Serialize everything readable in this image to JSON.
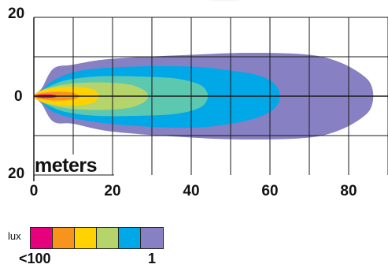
{
  "y_labels": {
    "top": "20",
    "center": "0",
    "bottom": "20"
  },
  "x_labels": [
    "0",
    "20",
    "40",
    "60",
    "80"
  ],
  "unit_label": "meters",
  "legend": {
    "title": "lux",
    "min_label": "<100",
    "max_label": "1",
    "colors": [
      "#E6007E",
      "#F7941D",
      "#FFD200",
      "#B5D56A",
      "#00A8E8",
      "#8780C2"
    ]
  },
  "chart_data": {
    "type": "heatmap",
    "x_range": [
      0,
      90
    ],
    "y_range": [
      -20,
      20
    ],
    "grid": true,
    "contours": [
      {
        "color": "#8780C2",
        "points": [
          [
            0,
            0
          ],
          [
            2,
            2
          ],
          [
            5,
            7
          ],
          [
            10,
            8
          ],
          [
            20,
            9.5
          ],
          [
            40,
            10.5
          ],
          [
            55,
            11
          ],
          [
            70,
            10.5
          ],
          [
            78,
            8.5
          ],
          [
            84,
            5
          ],
          [
            86,
            2
          ],
          [
            86,
            -2
          ],
          [
            84,
            -5
          ],
          [
            78,
            -8.5
          ],
          [
            70,
            -10.5
          ],
          [
            55,
            -11
          ],
          [
            40,
            -10.5
          ],
          [
            20,
            -9
          ],
          [
            10,
            -7
          ],
          [
            5,
            -6.5
          ],
          [
            2,
            -2
          ]
        ]
      },
      {
        "color": "#00A8E8",
        "points": [
          [
            0,
            0
          ],
          [
            2,
            1.5
          ],
          [
            5,
            4
          ],
          [
            12,
            6.5
          ],
          [
            25,
            7.5
          ],
          [
            40,
            7.5
          ],
          [
            50,
            6.5
          ],
          [
            58,
            5
          ],
          [
            62,
            2
          ],
          [
            62,
            -2
          ],
          [
            58,
            -5
          ],
          [
            50,
            -7
          ],
          [
            40,
            -8
          ],
          [
            25,
            -7.5
          ],
          [
            12,
            -6
          ],
          [
            5,
            -4
          ],
          [
            2,
            -1.5
          ]
        ]
      },
      {
        "color": "#5CC8B0",
        "points": [
          [
            0,
            0
          ],
          [
            3,
            2
          ],
          [
            8,
            4
          ],
          [
            16,
            5
          ],
          [
            26,
            5
          ],
          [
            36,
            4.5
          ],
          [
            42,
            3
          ],
          [
            44,
            1
          ],
          [
            44,
            -1
          ],
          [
            42,
            -3
          ],
          [
            36,
            -4.5
          ],
          [
            26,
            -5
          ],
          [
            16,
            -5
          ],
          [
            8,
            -4
          ],
          [
            3,
            -2
          ]
        ]
      },
      {
        "color": "#B5D56A",
        "points": [
          [
            0,
            0
          ],
          [
            2,
            1.5
          ],
          [
            8,
            3
          ],
          [
            16,
            3.5
          ],
          [
            24,
            3
          ],
          [
            28,
            1.5
          ],
          [
            29,
            0
          ],
          [
            28,
            -1.5
          ],
          [
            24,
            -3
          ],
          [
            16,
            -3.5
          ],
          [
            8,
            -3
          ],
          [
            2,
            -1.5
          ]
        ]
      },
      {
        "color": "#FFD200",
        "points": [
          [
            0,
            0
          ],
          [
            1,
            1
          ],
          [
            4,
            2
          ],
          [
            9,
            2.4
          ],
          [
            14,
            2
          ],
          [
            16,
            1
          ],
          [
            16.5,
            0
          ],
          [
            16,
            -1
          ],
          [
            14,
            -2
          ],
          [
            9,
            -2.4
          ],
          [
            4,
            -2
          ],
          [
            1,
            -1
          ]
        ]
      },
      {
        "color": "#F7941D",
        "points": [
          [
            0,
            0
          ],
          [
            1,
            0.6
          ],
          [
            5,
            1.1
          ],
          [
            9,
            1
          ],
          [
            11,
            0.5
          ],
          [
            11.5,
            0
          ],
          [
            11,
            -0.5
          ],
          [
            9,
            -1
          ],
          [
            5,
            -1.1
          ],
          [
            1,
            -0.6
          ]
        ]
      },
      {
        "color": "#E6007E",
        "points": [
          [
            0,
            0
          ],
          [
            1,
            0.3
          ],
          [
            3,
            0.45
          ],
          [
            5,
            0.35
          ],
          [
            6,
            0
          ],
          [
            5,
            -0.35
          ],
          [
            3,
            -0.45
          ],
          [
            1,
            -0.3
          ]
        ]
      }
    ]
  }
}
